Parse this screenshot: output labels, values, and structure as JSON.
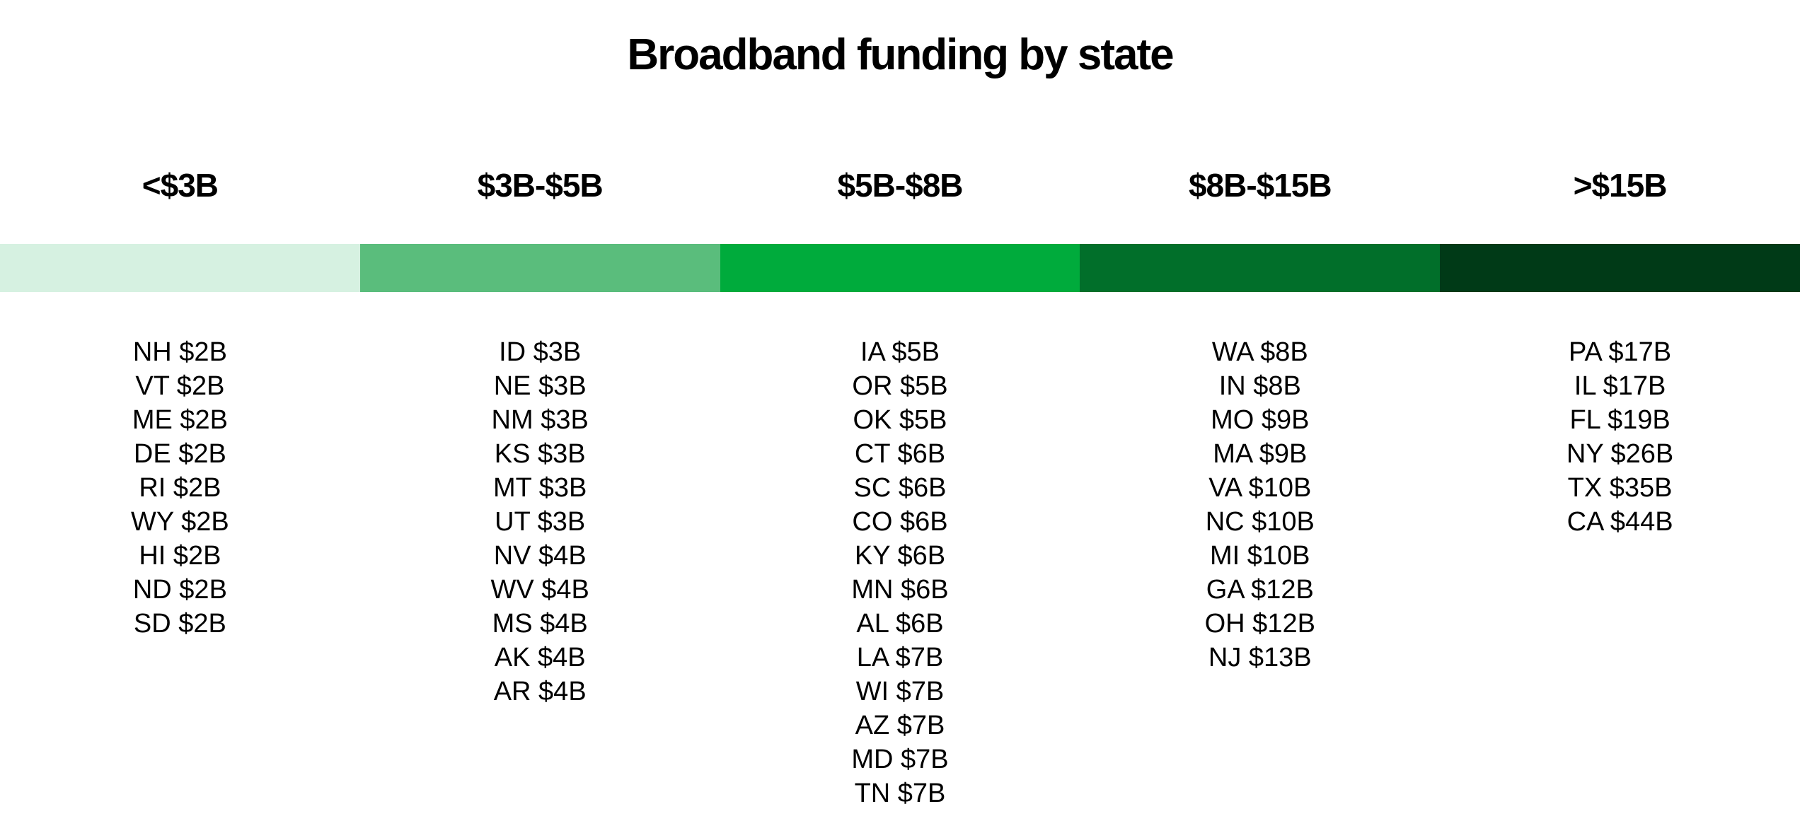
{
  "chart_data": {
    "type": "table",
    "title": "Broadband funding by state",
    "bins": [
      {
        "label": "<$3B",
        "color": "#d6f1e1",
        "states": [
          "NH $2B",
          "VT $2B",
          "ME $2B",
          "DE $2B",
          "RI $2B",
          "WY $2B",
          "HI $2B",
          "ND $2B",
          "SD $2B"
        ]
      },
      {
        "label": "$3B-$5B",
        "color": "#5abd7c",
        "states": [
          "ID $3B",
          "NE $3B",
          "NM $3B",
          "KS $3B",
          "MT $3B",
          "UT $3B",
          "NV $4B",
          "WV $4B",
          "MS $4B",
          "AK $4B",
          "AR $4B"
        ]
      },
      {
        "label": "$5B-$8B",
        "color": "#00ab3c",
        "states": [
          "IA $5B",
          "OR $5B",
          "OK $5B",
          "CT $6B",
          "SC $6B",
          "CO $6B",
          "KY $6B",
          "MN $6B",
          "AL $6B",
          "LA $7B",
          "WI $7B",
          "AZ $7B",
          "MD $7B",
          "TN $7B"
        ]
      },
      {
        "label": "$8B-$15B",
        "color": "#016f2a",
        "states": [
          "WA $8B",
          "IN $8B",
          "MO $9B",
          "MA $9B",
          "VA $10B",
          "NC $10B",
          "MI $10B",
          "GA $12B",
          "OH $12B",
          "NJ $13B"
        ]
      },
      {
        "label": ">$15B",
        "color": "#003a17",
        "states": [
          "PA $17B",
          "IL $17B",
          "FL $19B",
          "NY $26B",
          "TX $35B",
          "CA $44B"
        ]
      }
    ]
  }
}
